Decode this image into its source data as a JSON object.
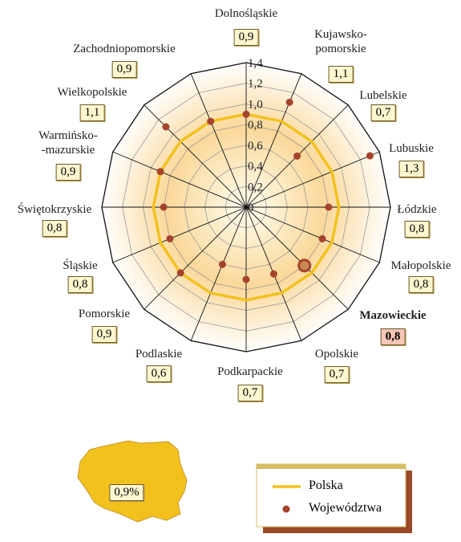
{
  "chart_data": {
    "type": "radar",
    "categories": [
      "Dolnośląskie",
      "Kujawsko-\npomorskie",
      "Lubelskie",
      "Lubuskie",
      "Łódzkie",
      "Małopolskie",
      "Mazowieckie",
      "Opolskie",
      "Podkarpackie",
      "Podlaskie",
      "Pomorskie",
      "Śląskie",
      "Świętokrzyskie",
      "Warmińsko-\n-mazurskie",
      "Wielkopolskie",
      "Zachodniopomorskie"
    ],
    "series": [
      {
        "name": "Polska",
        "color": "#f2c11c",
        "values": [
          0.9,
          0.9,
          0.9,
          0.9,
          0.9,
          0.9,
          0.9,
          0.9,
          0.9,
          0.9,
          0.9,
          0.9,
          0.9,
          0.9,
          0.9,
          0.9
        ]
      },
      {
        "name": "Województwa",
        "color": "#a5432c",
        "values": [
          0.9,
          1.1,
          0.7,
          1.3,
          0.8,
          0.8,
          0.8,
          0.7,
          0.7,
          0.6,
          0.9,
          0.8,
          0.8,
          0.9,
          1.1,
          0.9
        ],
        "value_labels": [
          "0,9",
          "1,1",
          "0,7",
          "1,3",
          "0,8",
          "0,8",
          "0,8",
          "0,7",
          "0,7",
          "0,6",
          "0,9",
          "0,8",
          "0,8",
          "0,9",
          "1,1",
          "0,9"
        ]
      }
    ],
    "highlight": 6,
    "rlim": [
      0,
      1.4
    ],
    "rticks": [
      0,
      {
        "value": 0.2,
        "label": "0,2"
      },
      {
        "value": 0.4,
        "label": "0,4"
      },
      {
        "value": 0.6,
        "label": "0,6"
      },
      {
        "value": 0.8,
        "label": "0,8"
      },
      {
        "value": 1.0,
        "label": "1,0"
      },
      {
        "value": 1.2,
        "label": "1,2"
      },
      {
        "value": 1.4,
        "label": "1,4"
      }
    ],
    "map_value": {
      "value": 0.9,
      "label": "0,9%"
    }
  }
}
